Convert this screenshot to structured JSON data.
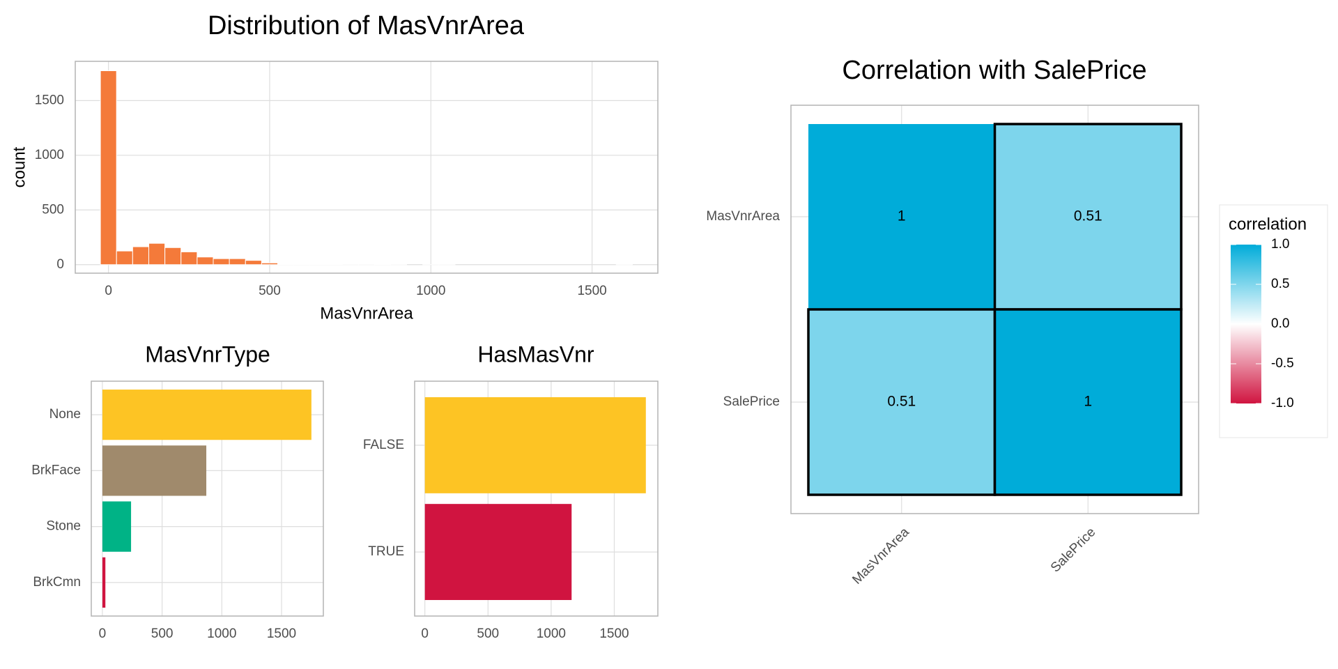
{
  "chart_data": [
    {
      "type": "histogram",
      "title": "Distribution of MasVnrArea",
      "x_label": "MasVnrArea",
      "y_label": "count",
      "color": "#f47a3a",
      "bins": [
        -25,
        25,
        75,
        125,
        175,
        225,
        275,
        325,
        375,
        425,
        475,
        525,
        575,
        625,
        675,
        725,
        775,
        825,
        875,
        925,
        975,
        1025,
        1075,
        1125,
        1175,
        1225,
        1275,
        1325,
        1375,
        1425,
        1475,
        1525,
        1575,
        1625
      ],
      "values": [
        1773,
        125,
        164,
        195,
        156,
        117,
        70,
        55,
        55,
        39,
        16,
        4,
        3,
        3,
        2,
        1,
        1,
        2,
        1,
        0,
        1,
        1,
        0,
        0,
        0,
        0,
        0,
        0,
        0,
        0,
        0,
        0,
        1
      ],
      "xlim": [
        -103,
        1704
      ],
      "xticks": [
        0,
        500,
        1000,
        1500
      ],
      "ylim": [
        -78,
        1859
      ],
      "yticks": [
        0,
        500,
        1000,
        1500
      ],
      "grid": true
    },
    {
      "type": "bar",
      "orientation": "horizontal",
      "title": "MasVnrType",
      "categories": [
        "None",
        "BrkFace",
        "Stone",
        "BrkCmn"
      ],
      "values": [
        1750,
        870,
        240,
        25
      ],
      "colors": [
        "#fdc424",
        "#a08a6c",
        "#00b386",
        "#d01440"
      ],
      "xlim": [
        -93,
        1850
      ],
      "xticks": [
        0,
        500,
        1000,
        1500
      ],
      "grid": true
    },
    {
      "type": "bar",
      "orientation": "horizontal",
      "title": "HasMasVnr",
      "categories": [
        "FALSE",
        "TRUE"
      ],
      "values": [
        1750,
        1162
      ],
      "colors": [
        "#fdc424",
        "#d01440"
      ],
      "xlim": [
        -81,
        1845
      ],
      "xticks": [
        0,
        500,
        1000,
        1500
      ],
      "grid": true
    },
    {
      "type": "heatmap",
      "title": "Correlation with SalePrice",
      "x_categories": [
        "MasVnrArea",
        "SalePrice"
      ],
      "y_categories": [
        "MasVnrArea",
        "SalePrice"
      ],
      "values": [
        [
          1,
          0.51
        ],
        [
          0.51,
          1
        ]
      ],
      "legend_title": "correlation",
      "clim": [
        -1,
        1
      ],
      "cticks": [
        {
          "value": 1,
          "label": "1.0"
        },
        0.5,
        {
          "value": 0,
          "label": "0.0"
        },
        -0.5,
        {
          "value": -1,
          "label": "-1.0"
        }
      ],
      "low_color": "#d01440",
      "mid_color": "#ffffff",
      "high_color": "#00acd9"
    }
  ]
}
